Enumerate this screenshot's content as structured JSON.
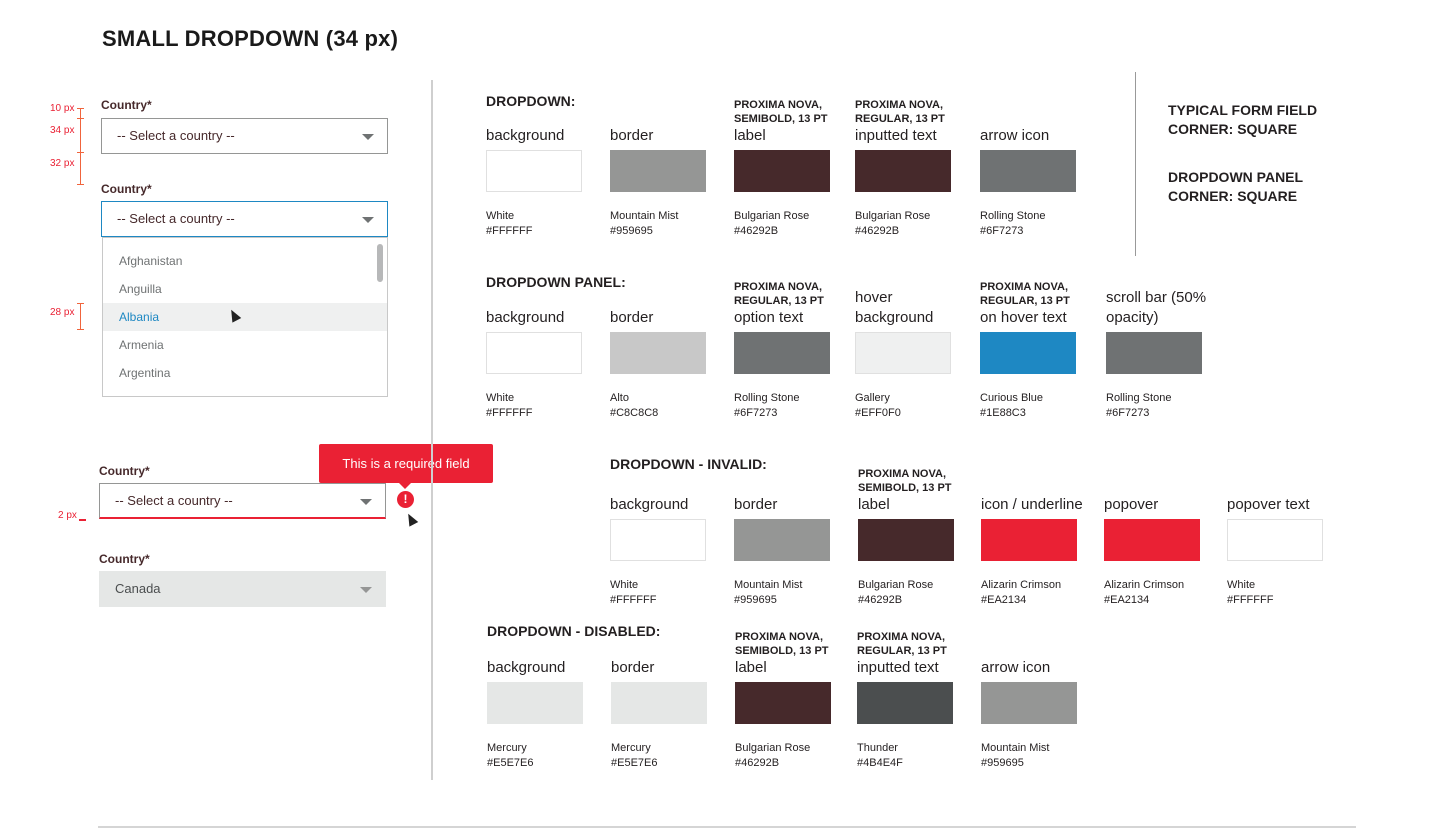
{
  "title": "SMALL DROPDOWN (34 px)",
  "form": {
    "label": "Country*",
    "placeholder": "-- Select a country --",
    "options": [
      "Afghanistan",
      "Anguilla",
      "Albania",
      "Armenia",
      "Argentina"
    ],
    "hovered_option": "Albania",
    "error_message": "This is a required field",
    "error_icon": "!",
    "disabled_value": "Canada",
    "measurements": {
      "label_gap": "10 px",
      "height": "34 px",
      "spacing": "32 px",
      "option_height": "28 px",
      "underline": "2 px"
    }
  },
  "notes": {
    "line1": "TYPICAL FORM FIELD",
    "line2": "CORNER:  SQUARE",
    "line3": "DROPDOWN PANEL",
    "line4": "CORNER:  SQUARE"
  },
  "sections": [
    {
      "title": "DROPDOWN:",
      "swatches": [
        {
          "label": "background",
          "name": "White",
          "hex": "#FFFFFF"
        },
        {
          "label": "border",
          "name": "Mountain Mist",
          "hex": "#959695"
        },
        {
          "note": "PROXIMA NOVA, SEMIBOLD, 13 PT",
          "label": "label",
          "name": "Bulgarian Rose",
          "hex": "#46292B"
        },
        {
          "note": "PROXIMA NOVA, REGULAR, 13 PT",
          "label": "inputted text",
          "name": "Bulgarian Rose",
          "hex": "#46292B"
        },
        {
          "label": "arrow icon",
          "name": "Rolling Stone",
          "hex": "#6F7273"
        }
      ]
    },
    {
      "title": "DROPDOWN PANEL:",
      "swatches": [
        {
          "label": "background",
          "name": "White",
          "hex": "#FFFFFF"
        },
        {
          "label": "border",
          "name": "Alto",
          "hex": "#C8C8C8"
        },
        {
          "note": "PROXIMA NOVA, REGULAR, 13 PT",
          "label": "option text",
          "name": "Rolling Stone",
          "hex": "#6F7273"
        },
        {
          "label": "hover background",
          "name": "Gallery",
          "hex": "#EFF0F0"
        },
        {
          "note": "PROXIMA NOVA, REGULAR, 13 PT",
          "label": "on hover text",
          "name": "Curious Blue",
          "hex": "#1E88C3"
        },
        {
          "label": "scroll bar (50% opacity)",
          "name": "Rolling Stone",
          "hex": "#6F7273"
        }
      ]
    },
    {
      "title": "DROPDOWN - INVALID:",
      "swatches": [
        {
          "label": "background",
          "name": "White",
          "hex": "#FFFFFF"
        },
        {
          "label": "border",
          "name": "Mountain Mist",
          "hex": "#959695"
        },
        {
          "note": "PROXIMA NOVA, SEMIBOLD, 13 PT",
          "label": "label",
          "name": "Bulgarian Rose",
          "hex": "#46292B"
        },
        {
          "label": "icon / underline",
          "name": "Alizarin Crimson",
          "hex": "#EA2134"
        },
        {
          "label": "popover",
          "name": "Alizarin Crimson",
          "hex": "#EA2134"
        },
        {
          "label": "popover text",
          "name": "White",
          "hex": "#FFFFFF"
        }
      ]
    },
    {
      "title": "DROPDOWN - DISABLED:",
      "swatches": [
        {
          "label": "background",
          "name": "Mercury",
          "hex": "#E5E7E6"
        },
        {
          "label": "border",
          "name": "Mercury",
          "hex": "#E5E7E6"
        },
        {
          "note": "PROXIMA NOVA, SEMIBOLD, 13 PT",
          "label": "label",
          "name": "Bulgarian Rose",
          "hex": "#46292B"
        },
        {
          "note": "PROXIMA NOVA, REGULAR, 13 PT",
          "label": "inputted text",
          "name": "Thunder",
          "hex": "#4B4E4F"
        },
        {
          "label": "arrow icon",
          "name": "Mountain Mist",
          "hex": "#959695"
        }
      ]
    }
  ]
}
